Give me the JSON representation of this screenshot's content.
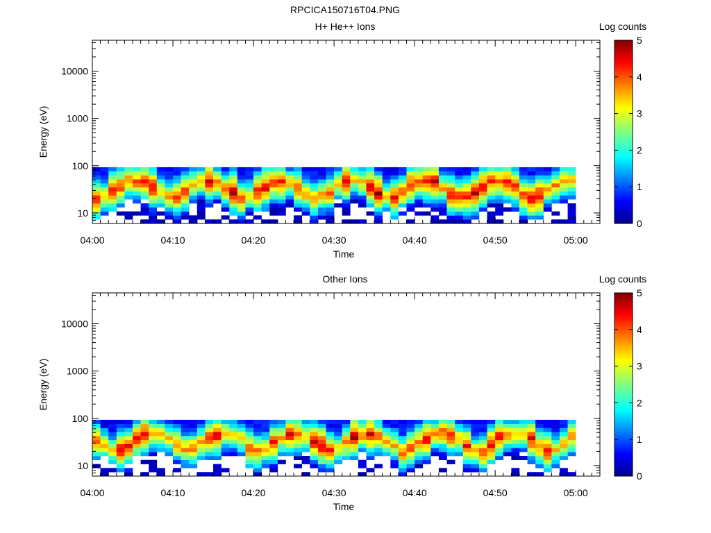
{
  "figure": {
    "title": "RPCICA150716T04.PNG"
  },
  "chart_data": [
    {
      "type": "heatmap",
      "title": "H+ He++ Ions",
      "xlabel": "Time",
      "ylabel": "Energy (eV)",
      "x_ticks": [
        "04:00",
        "04:10",
        "04:20",
        "04:30",
        "04:40",
        "04:50",
        "05:00"
      ],
      "xlim_minutes": [
        0,
        63
      ],
      "y_scale": "log",
      "y_ticks": [
        "10",
        "100",
        "1000",
        "10000"
      ],
      "ylim": [
        6,
        45000
      ],
      "colorbar": {
        "label": "Log counts",
        "ticks": [
          "0",
          "1",
          "2",
          "3",
          "4",
          "5"
        ],
        "range": [
          0,
          5
        ]
      },
      "time_step_min": 1,
      "energy_bin_edges_eV": [
        6,
        7.3,
        8.9,
        10.8,
        13.2,
        16,
        19.5,
        23.7,
        28.8,
        35,
        42.6,
        51.8,
        63,
        76.6,
        93
      ],
      "seed": 17,
      "sparsity": 0.35
    },
    {
      "type": "heatmap",
      "title": "Other Ions",
      "xlabel": "Time",
      "ylabel": "Energy (eV)",
      "x_ticks": [
        "04:00",
        "04:10",
        "04:20",
        "04:30",
        "04:40",
        "04:50",
        "05:00"
      ],
      "xlim_minutes": [
        0,
        63
      ],
      "y_scale": "log",
      "y_ticks": [
        "10",
        "100",
        "1000",
        "10000"
      ],
      "ylim": [
        6,
        45000
      ],
      "colorbar": {
        "label": "Log counts",
        "ticks": [
          "0",
          "1",
          "2",
          "3",
          "4",
          "5"
        ],
        "range": [
          0,
          5
        ]
      },
      "time_step_min": 1,
      "energy_bin_edges_eV": [
        6,
        7.3,
        8.9,
        10.8,
        13.2,
        16,
        19.5,
        23.7,
        28.8,
        35,
        42.6,
        51.8,
        63,
        76.6,
        93
      ],
      "seed": 91,
      "sparsity": 0.55
    }
  ]
}
